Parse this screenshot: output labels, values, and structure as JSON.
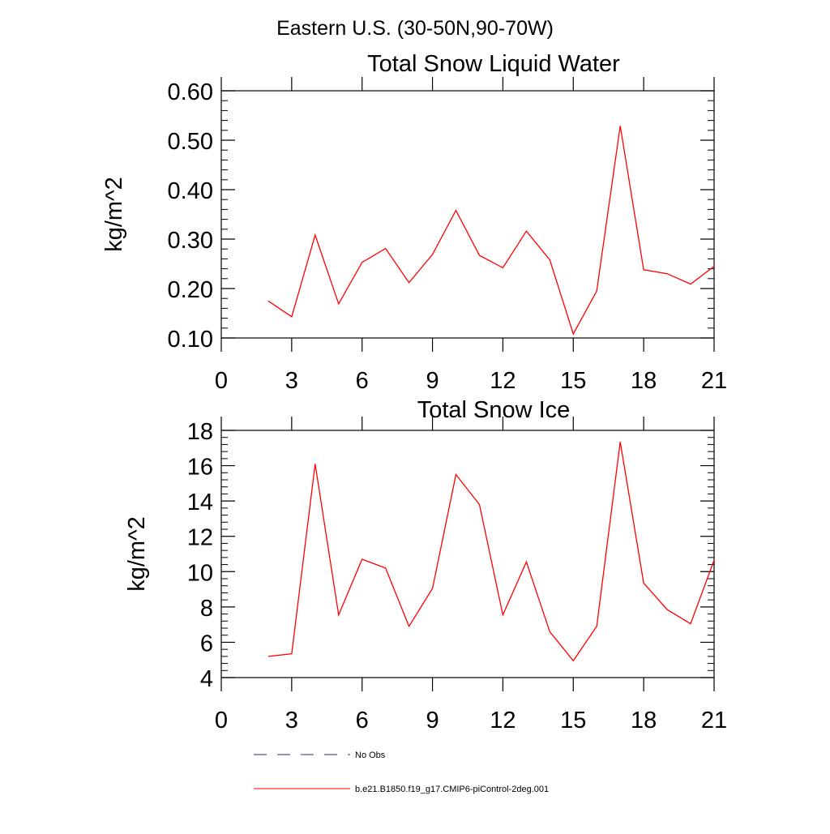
{
  "figure": {
    "title": "Eastern U.S. (30-50N,90-70W)"
  },
  "chart_data": [
    {
      "type": "line",
      "title": "Total Snow Liquid Water",
      "xlabel": "",
      "ylabel": "kg/m^2",
      "xlim": [
        0,
        21
      ],
      "ylim": [
        0.1,
        0.6
      ],
      "xticks": [
        0,
        3,
        6,
        9,
        12,
        15,
        18,
        21
      ],
      "xtick_labels": [
        "0",
        "3",
        "6",
        "9",
        "12",
        "15",
        "18",
        "21"
      ],
      "yticks": [
        0.1,
        0.2,
        0.3,
        0.4,
        0.5,
        0.6
      ],
      "ytick_labels": [
        "0.10",
        "0.20",
        "0.30",
        "0.40",
        "0.50",
        "0.60"
      ],
      "grid": false,
      "series": [
        {
          "name": "b.e21.B1850.f19_g17.CMIP6-piControl-2deg.001",
          "color": "#ff0000",
          "x": [
            2,
            3,
            4,
            5,
            6,
            7,
            8,
            9,
            10,
            11,
            12,
            13,
            14,
            15,
            16,
            17,
            18,
            19,
            20,
            21
          ],
          "values": [
            0.175,
            0.143,
            0.308,
            0.169,
            0.253,
            0.281,
            0.212,
            0.269,
            0.358,
            0.267,
            0.242,
            0.316,
            0.258,
            0.108,
            0.195,
            0.529,
            0.238,
            0.23,
            0.209,
            0.245
          ]
        }
      ]
    },
    {
      "type": "line",
      "title": "Total Snow Ice",
      "xlabel": "",
      "ylabel": "kg/m^2",
      "xlim": [
        0,
        21
      ],
      "ylim": [
        4,
        18
      ],
      "xticks": [
        0,
        3,
        6,
        9,
        12,
        15,
        18,
        21
      ],
      "xtick_labels": [
        "0",
        "3",
        "6",
        "9",
        "12",
        "15",
        "18",
        "21"
      ],
      "yticks": [
        4,
        6,
        8,
        10,
        12,
        14,
        16,
        18
      ],
      "ytick_labels": [
        "4",
        "6",
        "8",
        "10",
        "12",
        "14",
        "16",
        "18"
      ],
      "grid": false,
      "series": [
        {
          "name": "b.e21.B1850.f19_g17.CMIP6-piControl-2deg.001",
          "color": "#ff0000",
          "x": [
            2,
            3,
            4,
            5,
            6,
            7,
            8,
            9,
            10,
            11,
            12,
            13,
            14,
            15,
            16,
            17,
            18,
            19,
            20,
            21
          ],
          "values": [
            5.2,
            5.35,
            16.1,
            7.55,
            10.7,
            10.2,
            6.9,
            9.05,
            15.5,
            13.8,
            7.55,
            10.55,
            6.6,
            4.95,
            6.9,
            17.35,
            9.35,
            7.85,
            7.05,
            10.65
          ]
        }
      ]
    }
  ],
  "legend": {
    "placement": "bottom-left",
    "items": [
      {
        "label": "No Obs",
        "style": "dashed",
        "color": "#2a2a6a"
      },
      {
        "label": "b.e21.B1850.f19_g17.CMIP6-piControl-2deg.001",
        "style": "solid",
        "color": "#ff0000"
      }
    ]
  }
}
